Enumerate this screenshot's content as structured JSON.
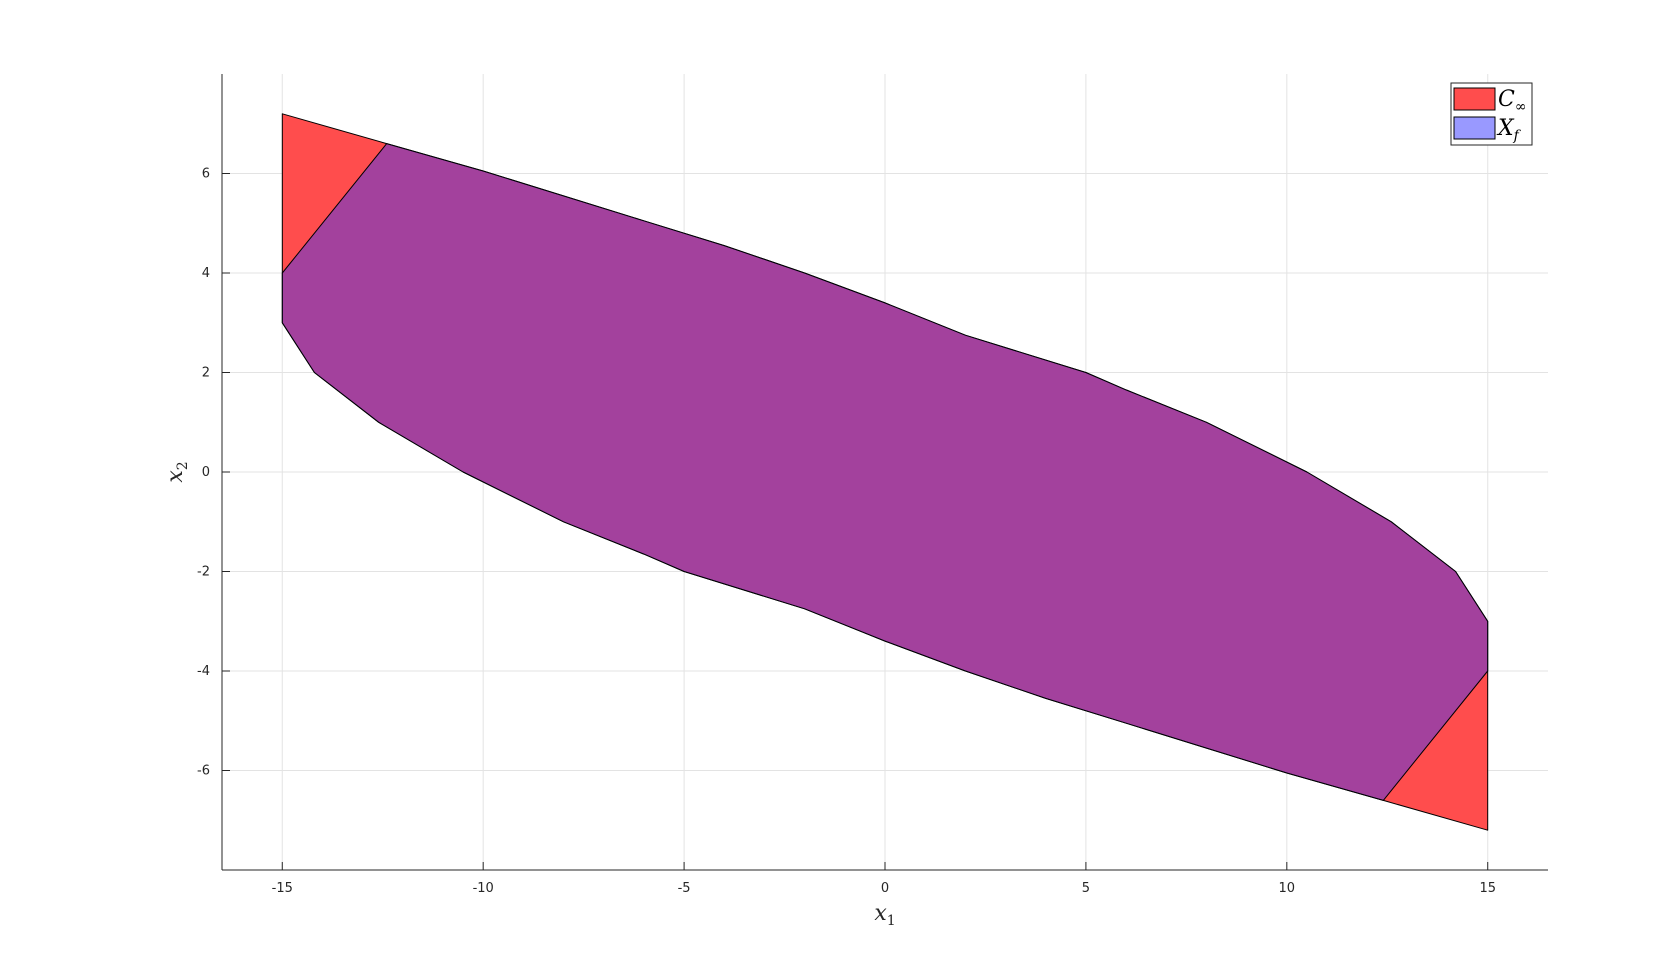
{
  "chart_data": {
    "type": "area",
    "title": "",
    "xlabel": {
      "base": "x",
      "sub": "1"
    },
    "ylabel": {
      "base": "x",
      "sub": "2"
    },
    "xlim": [
      -16.5,
      16.5
    ],
    "ylim": [
      -8,
      8
    ],
    "xticks": [
      -15,
      -10,
      -5,
      0,
      5,
      10,
      15
    ],
    "yticks": [
      -6,
      -4,
      -2,
      0,
      2,
      4,
      6
    ],
    "grid": true,
    "legend_position": "top-right",
    "series": [
      {
        "name": {
          "base": "C",
          "sub": "∞"
        },
        "color": "#ff4d4d",
        "polygon": [
          [
            -15,
            7.2
          ],
          [
            -12.4,
            6.6
          ],
          [
            -10,
            6.05
          ],
          [
            -8,
            5.55
          ],
          [
            -6,
            5.05
          ],
          [
            -4,
            4.55
          ],
          [
            -2,
            4.0
          ],
          [
            0,
            3.4
          ],
          [
            2,
            2.75
          ],
          [
            5,
            2.0
          ],
          [
            6,
            1.65
          ],
          [
            8,
            1.0
          ],
          [
            10.5,
            0.0
          ],
          [
            12.6,
            -1.0
          ],
          [
            14.2,
            -2.0
          ],
          [
            15,
            -3.0
          ],
          [
            15,
            -7.2
          ],
          [
            12.4,
            -6.6
          ],
          [
            10,
            -6.05
          ],
          [
            8,
            -5.55
          ],
          [
            6,
            -5.05
          ],
          [
            4,
            -4.55
          ],
          [
            2,
            -4.0
          ],
          [
            0,
            -3.4
          ],
          [
            -2,
            -2.75
          ],
          [
            -5,
            -2.0
          ],
          [
            -6,
            -1.65
          ],
          [
            -8,
            -1.0
          ],
          [
            -10.5,
            0.0
          ],
          [
            -12.6,
            1.0
          ],
          [
            -14.2,
            2.0
          ],
          [
            -15,
            3.0
          ]
        ]
      },
      {
        "name": {
          "base": "X",
          "sub": "f"
        },
        "color": "#9999ff",
        "polygon": [
          [
            -15,
            4.0
          ],
          [
            -12.4,
            6.6
          ],
          [
            -10,
            6.05
          ],
          [
            -8,
            5.55
          ],
          [
            -6,
            5.05
          ],
          [
            -4,
            4.55
          ],
          [
            -2,
            4.0
          ],
          [
            0,
            3.4
          ],
          [
            2,
            2.75
          ],
          [
            5,
            2.0
          ],
          [
            6,
            1.65
          ],
          [
            8,
            1.0
          ],
          [
            10.5,
            0.0
          ],
          [
            12.6,
            -1.0
          ],
          [
            14.2,
            -2.0
          ],
          [
            15,
            -3.0
          ],
          [
            15,
            -4.0
          ],
          [
            12.4,
            -6.6
          ],
          [
            10,
            -6.05
          ],
          [
            8,
            -5.55
          ],
          [
            6,
            -5.05
          ],
          [
            4,
            -4.55
          ],
          [
            2,
            -4.0
          ],
          [
            0,
            -3.4
          ],
          [
            -2,
            -2.75
          ],
          [
            -5,
            -2.0
          ],
          [
            -6,
            -1.65
          ],
          [
            -8,
            -1.0
          ],
          [
            -10.5,
            0.0
          ],
          [
            -12.6,
            1.0
          ],
          [
            -14.2,
            2.0
          ],
          [
            -15,
            3.0
          ]
        ]
      }
    ]
  }
}
